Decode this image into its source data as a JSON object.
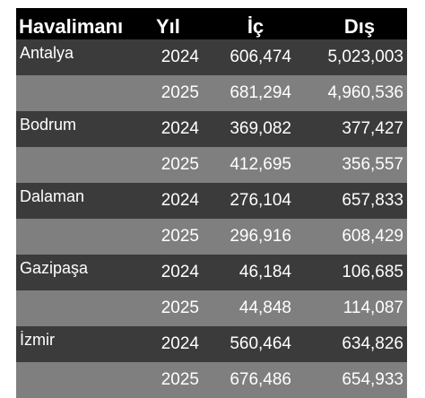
{
  "table": {
    "headers": {
      "airport": "Havalimanı",
      "year": "Yıl",
      "domestic": "İç",
      "international": "Dış"
    },
    "rows": [
      {
        "airport": "Antalya",
        "year": "2024",
        "domestic": "606,474",
        "international": "5,023,003"
      },
      {
        "airport": "",
        "year": "2025",
        "domestic": "681,294",
        "international": "4,960,536"
      },
      {
        "airport": "Bodrum",
        "year": "2024",
        "domestic": "369,082",
        "international": "377,427"
      },
      {
        "airport": "",
        "year": "2025",
        "domestic": "412,695",
        "international": "356,557"
      },
      {
        "airport": "Dalaman",
        "year": "2024",
        "domestic": "276,104",
        "international": "657,833"
      },
      {
        "airport": "",
        "year": "2025",
        "domestic": "296,916",
        "international": "608,429"
      },
      {
        "airport": "Gazipaşa",
        "year": "2024",
        "domestic": "46,184",
        "international": "106,685"
      },
      {
        "airport": "",
        "year": "2025",
        "domestic": "44,848",
        "international": "114,087"
      },
      {
        "airport": "İzmir",
        "year": "2024",
        "domestic": "560,464",
        "international": "634,826"
      },
      {
        "airport": "",
        "year": "2025",
        "domestic": "676,486",
        "international": "654,933"
      }
    ]
  },
  "colors": {
    "header_bg": "#000000",
    "row_dark": "#3b3b3b",
    "row_light": "#7f7f7f",
    "text": "#ffffff"
  }
}
